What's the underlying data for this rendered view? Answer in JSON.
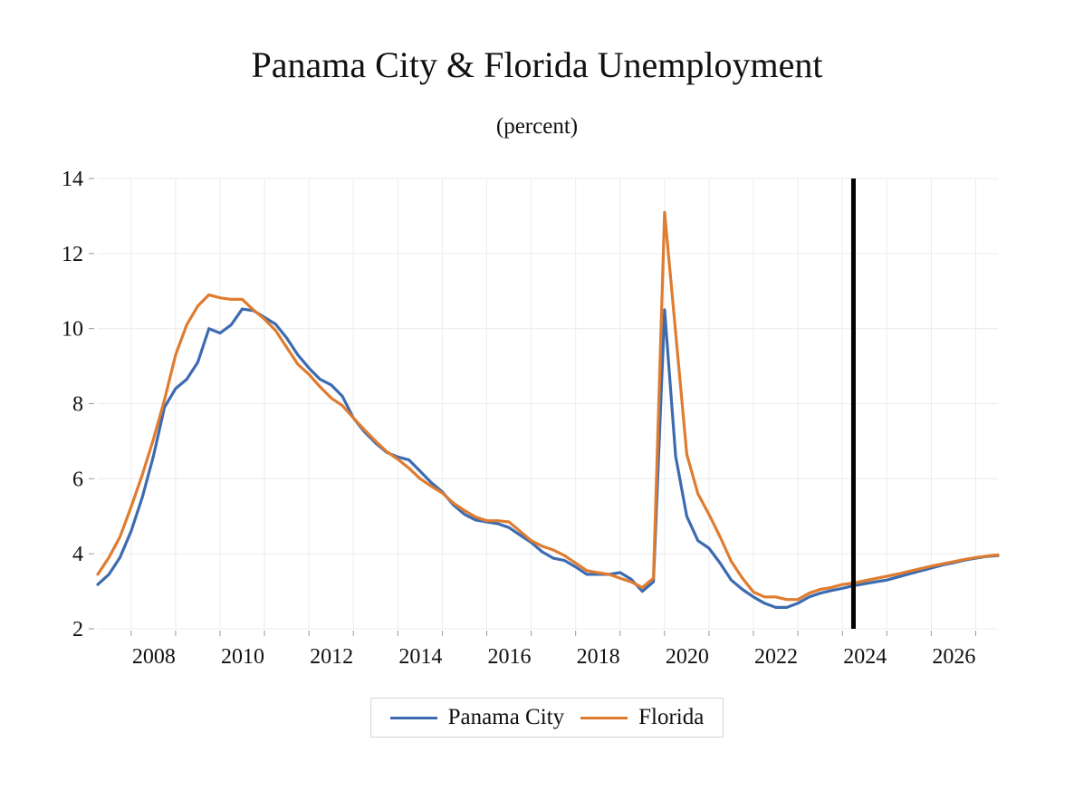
{
  "chart_data": {
    "type": "line",
    "title": "Panama City & Florida Unemployment",
    "subtitle": "(percent)",
    "xlabel": "",
    "ylabel": "",
    "ylim": [
      2,
      14
    ],
    "xlim": [
      2007.25,
      2027.5
    ],
    "yticks": [
      2,
      4,
      6,
      8,
      10,
      12,
      14
    ],
    "xticks": [
      2008,
      2010,
      2012,
      2014,
      2016,
      2018,
      2020,
      2022,
      2024,
      2026
    ],
    "grid": true,
    "legend_position": "bottom",
    "marker_line": {
      "x": 2024.25,
      "color": "#000000"
    },
    "series": [
      {
        "name": "Panama City",
        "color": "#3d6bb0",
        "x": [
          2007.25,
          2007.5,
          2007.75,
          2008.0,
          2008.25,
          2008.5,
          2008.75,
          2009.0,
          2009.25,
          2009.5,
          2009.75,
          2010.0,
          2010.25,
          2010.5,
          2010.75,
          2011.0,
          2011.25,
          2011.5,
          2011.75,
          2012.0,
          2012.25,
          2012.5,
          2012.75,
          2013.0,
          2013.25,
          2013.5,
          2013.75,
          2014.0,
          2014.25,
          2014.5,
          2014.75,
          2015.0,
          2015.25,
          2015.5,
          2015.75,
          2016.0,
          2016.25,
          2016.5,
          2016.75,
          2017.0,
          2017.25,
          2017.5,
          2017.75,
          2018.0,
          2018.25,
          2018.5,
          2018.75,
          2019.0,
          2019.25,
          2019.5,
          2019.75,
          2020.0,
          2020.25,
          2020.5,
          2020.75,
          2021.0,
          2021.25,
          2021.5,
          2021.75,
          2022.0,
          2022.25,
          2022.5,
          2022.75,
          2023.0,
          2023.25,
          2023.5,
          2023.75,
          2024.0,
          2024.25,
          2024.5,
          2024.75,
          2025.0,
          2025.25,
          2025.5,
          2025.75,
          2026.0,
          2026.25,
          2026.5,
          2026.75,
          2027.0,
          2027.25,
          2027.5
        ],
        "values": [
          3.18,
          3.45,
          3.9,
          4.6,
          5.5,
          6.6,
          7.9,
          8.4,
          8.65,
          9.1,
          10.0,
          9.88,
          10.1,
          10.52,
          10.48,
          10.3,
          10.12,
          9.75,
          9.3,
          8.95,
          8.65,
          8.5,
          8.2,
          7.62,
          7.25,
          6.95,
          6.7,
          6.58,
          6.5,
          6.2,
          5.9,
          5.65,
          5.3,
          5.05,
          4.9,
          4.85,
          4.8,
          4.7,
          4.5,
          4.3,
          4.05,
          3.88,
          3.82,
          3.65,
          3.45,
          3.45,
          3.45,
          3.5,
          3.32,
          3.0,
          3.25,
          10.5,
          6.6,
          5.0,
          4.35,
          4.15,
          3.75,
          3.3,
          3.05,
          2.85,
          2.68,
          2.57,
          2.57,
          2.68,
          2.85,
          2.95,
          3.02,
          3.08,
          3.15,
          3.2,
          3.25,
          3.3,
          3.38,
          3.46,
          3.54,
          3.62,
          3.7,
          3.76,
          3.83,
          3.88,
          3.93,
          3.95
        ]
      },
      {
        "name": "Florida",
        "color": "#df7c30",
        "x": [
          2007.25,
          2007.5,
          2007.75,
          2008.0,
          2008.25,
          2008.5,
          2008.75,
          2009.0,
          2009.25,
          2009.5,
          2009.75,
          2010.0,
          2010.25,
          2010.5,
          2010.75,
          2011.0,
          2011.25,
          2011.5,
          2011.75,
          2012.0,
          2012.25,
          2012.5,
          2012.75,
          2013.0,
          2013.25,
          2013.5,
          2013.75,
          2014.0,
          2014.25,
          2014.5,
          2014.75,
          2015.0,
          2015.25,
          2015.5,
          2015.75,
          2016.0,
          2016.25,
          2016.5,
          2016.75,
          2017.0,
          2017.25,
          2017.5,
          2017.75,
          2018.0,
          2018.25,
          2018.5,
          2018.75,
          2019.0,
          2019.25,
          2019.5,
          2019.75,
          2020.0,
          2020.25,
          2020.5,
          2020.75,
          2021.0,
          2021.25,
          2021.5,
          2021.75,
          2022.0,
          2022.25,
          2022.5,
          2022.75,
          2023.0,
          2023.25,
          2023.5,
          2023.75,
          2024.0,
          2024.25,
          2024.5,
          2024.75,
          2025.0,
          2025.25,
          2025.5,
          2025.75,
          2026.0,
          2026.25,
          2026.5,
          2026.75,
          2027.0,
          2027.25,
          2027.5
        ],
        "values": [
          3.45,
          3.9,
          4.45,
          5.25,
          6.1,
          7.05,
          8.1,
          9.3,
          10.1,
          10.6,
          10.9,
          10.82,
          10.78,
          10.78,
          10.5,
          10.25,
          9.95,
          9.5,
          9.05,
          8.78,
          8.45,
          8.15,
          7.95,
          7.62,
          7.3,
          7.0,
          6.72,
          6.52,
          6.28,
          6.0,
          5.8,
          5.62,
          5.35,
          5.15,
          4.98,
          4.88,
          4.88,
          4.85,
          4.6,
          4.35,
          4.2,
          4.1,
          3.95,
          3.75,
          3.55,
          3.5,
          3.45,
          3.35,
          3.25,
          3.1,
          3.35,
          13.1,
          9.9,
          6.65,
          5.6,
          5.05,
          4.45,
          3.8,
          3.35,
          2.98,
          2.85,
          2.85,
          2.78,
          2.78,
          2.95,
          3.05,
          3.1,
          3.18,
          3.22,
          3.28,
          3.34,
          3.4,
          3.46,
          3.53,
          3.6,
          3.67,
          3.73,
          3.79,
          3.85,
          3.9,
          3.94,
          3.97
        ]
      }
    ]
  }
}
